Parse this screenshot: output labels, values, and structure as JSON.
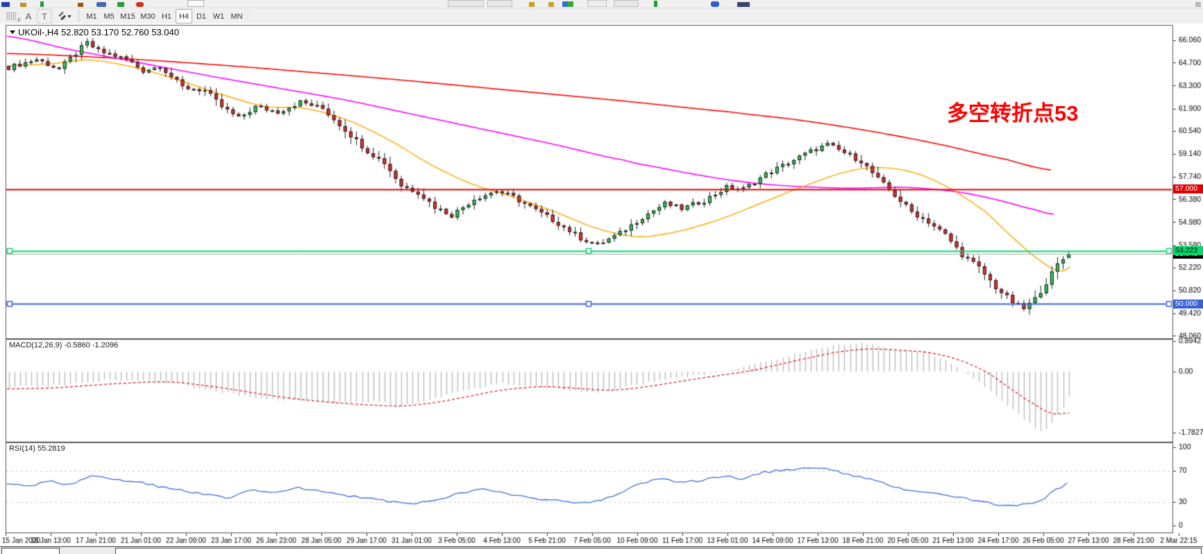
{
  "window": {
    "app": "MetaTrader chart window"
  },
  "toolbar": {
    "tools": {
      "grid_f": "F",
      "text_a": "A",
      "text_t": "T"
    },
    "timeframes": [
      {
        "label": "M1",
        "active": false
      },
      {
        "label": "M5",
        "active": false
      },
      {
        "label": "M15",
        "active": false
      },
      {
        "label": "M30",
        "active": false
      },
      {
        "label": "H1",
        "active": false
      },
      {
        "label": "H4",
        "active": true
      },
      {
        "label": "D1",
        "active": false
      },
      {
        "label": "W1",
        "active": false
      },
      {
        "label": "MN",
        "active": false
      }
    ]
  },
  "chart": {
    "title": "UKOil-,H4  52.820 53.170 52.760 53.040",
    "symbol": "UKOil-",
    "period": "H4",
    "ohlc": {
      "open": "52.820",
      "high": "53.170",
      "low": "52.760",
      "close": "53.040"
    },
    "annotation": {
      "text": "多空转折点53",
      "color": "#ff0000"
    },
    "badges": {
      "resistance": "57.000",
      "selected_line": "53.223",
      "current_price": "53.040",
      "support": "50.000"
    },
    "macd_label": "MACD(12,26,9) -0.5860 -1.2096",
    "rsi_label": "RSI(14) 55.2819"
  },
  "chart_data": {
    "type": "candlestick+macd+rsi",
    "title": "UKOil- H4 candlestick chart with MA(red/magenta/orange), horizontal levels, MACD and RSI",
    "main_panel": {
      "ylim": [
        47.9,
        66.99
      ],
      "y_ticks": [
        {
          "label": "66.060",
          "value": 66.06
        },
        {
          "label": "64.700",
          "value": 64.7
        },
        {
          "label": "63.300",
          "value": 63.3
        },
        {
          "label": "61.900",
          "value": 61.9
        },
        {
          "label": "60.540",
          "value": 60.54
        },
        {
          "label": "59.140",
          "value": 59.14
        },
        {
          "label": "57.740",
          "value": 57.74
        },
        {
          "label": "56.380",
          "value": 56.38
        },
        {
          "label": "54.980",
          "value": 54.98
        },
        {
          "label": "53.580",
          "value": 53.58
        },
        {
          "label": "52.220",
          "value": 52.22
        },
        {
          "label": "50.820",
          "value": 50.82
        },
        {
          "label": "49.420",
          "value": 49.42
        },
        {
          "label": "48.060",
          "value": 48.06
        }
      ],
      "h_lines": [
        {
          "name": "resistance",
          "value": 57.0,
          "color": "#e00000"
        },
        {
          "name": "selected_trend_level",
          "value": 53.223,
          "color": "#00d96e",
          "handles": true
        },
        {
          "name": "current_price",
          "value": 53.04,
          "color": "#aaaaaa"
        },
        {
          "name": "support",
          "value": 50.0,
          "color": "#3a62d8",
          "handles": true
        }
      ],
      "candles": {
        "count": 190,
        "x_start": 10,
        "x_step": 8.08,
        "body_width": 5,
        "up_color": "#2fc954",
        "down_color": "#e53030",
        "outline": "#1a1a1a",
        "close_keyframes": [
          [
            0,
            64.4
          ],
          [
            5,
            64.9
          ],
          [
            9,
            64.3
          ],
          [
            13,
            65.6
          ],
          [
            14,
            65.9
          ],
          [
            16,
            65.4
          ],
          [
            21,
            64.9
          ],
          [
            24,
            64.2
          ],
          [
            27,
            64.5
          ],
          [
            31,
            63.2
          ],
          [
            35,
            63.0
          ],
          [
            38,
            62.0
          ],
          [
            41,
            61.3
          ],
          [
            44,
            62.0
          ],
          [
            48,
            61.7
          ],
          [
            52,
            62.3
          ],
          [
            56,
            61.9
          ],
          [
            60,
            60.6
          ],
          [
            64,
            59.3
          ],
          [
            67,
            58.6
          ],
          [
            70,
            57.2
          ],
          [
            73,
            56.8
          ],
          [
            76,
            55.9
          ],
          [
            79,
            55.4
          ],
          [
            83,
            56.4
          ],
          [
            87,
            56.9
          ],
          [
            90,
            56.5
          ],
          [
            94,
            55.7
          ],
          [
            98,
            54.9
          ],
          [
            102,
            54.0
          ],
          [
            105,
            53.6
          ],
          [
            109,
            54.3
          ],
          [
            113,
            55.3
          ],
          [
            117,
            56.1
          ],
          [
            120,
            55.8
          ],
          [
            124,
            56.3
          ],
          [
            128,
            57.1
          ],
          [
            131,
            57.0
          ],
          [
            135,
            57.9
          ],
          [
            139,
            58.6
          ],
          [
            143,
            59.3
          ],
          [
            146,
            59.7
          ],
          [
            149,
            59.2
          ],
          [
            152,
            58.7
          ],
          [
            155,
            57.6
          ],
          [
            158,
            56.6
          ],
          [
            161,
            55.6
          ],
          [
            164,
            55.0
          ],
          [
            167,
            54.2
          ],
          [
            170,
            53.0
          ],
          [
            173,
            52.2
          ],
          [
            176,
            51.0
          ],
          [
            179,
            50.1
          ],
          [
            181,
            49.7
          ],
          [
            183,
            50.3
          ],
          [
            185,
            51.3
          ],
          [
            187,
            52.4
          ],
          [
            189,
            53.04
          ]
        ],
        "last_ohlc": [
          52.82,
          53.17,
          52.76,
          53.04
        ]
      },
      "moving_averages": [
        {
          "name": "ma_slow_red",
          "color": "#ff0000",
          "width": 1.6,
          "points": [
            [
              10,
              65.25
            ],
            [
              150,
              65.0
            ],
            [
              300,
              64.6
            ],
            [
              450,
              64.1
            ],
            [
              600,
              63.55
            ],
            [
              750,
              62.95
            ],
            [
              900,
              62.35
            ],
            [
              1050,
              61.7
            ],
            [
              1150,
              61.2
            ],
            [
              1250,
              60.55
            ],
            [
              1350,
              59.75
            ],
            [
              1450,
              58.8
            ],
            [
              1515,
              58.15
            ]
          ]
        },
        {
          "name": "ma_mid_magenta",
          "color": "#ff00ff",
          "width": 1.6,
          "points": [
            [
              10,
              66.3
            ],
            [
              100,
              65.5
            ],
            [
              200,
              64.7
            ],
            [
              300,
              63.9
            ],
            [
              400,
              63.15
            ],
            [
              500,
              62.4
            ],
            [
              600,
              61.5
            ],
            [
              700,
              60.6
            ],
            [
              800,
              59.7
            ],
            [
              900,
              58.75
            ],
            [
              950,
              58.3
            ],
            [
              1000,
              57.9
            ],
            [
              1050,
              57.55
            ],
            [
              1100,
              57.3
            ],
            [
              1150,
              57.15
            ],
            [
              1220,
              57.05
            ],
            [
              1300,
              57.1
            ],
            [
              1340,
              57.0
            ],
            [
              1390,
              56.75
            ],
            [
              1440,
              56.3
            ],
            [
              1490,
              55.75
            ],
            [
              1520,
              55.45
            ]
          ]
        },
        {
          "name": "ma_fast_orange",
          "color": "#ffa500",
          "width": 1.4,
          "points": [
            [
              10,
              64.5
            ],
            [
              80,
              64.65
            ],
            [
              130,
              64.85
            ],
            [
              200,
              64.35
            ],
            [
              260,
              63.6
            ],
            [
              320,
              62.75
            ],
            [
              380,
              62.05
            ],
            [
              440,
              61.9
            ],
            [
              500,
              61.2
            ],
            [
              560,
              60.0
            ],
            [
              620,
              58.5
            ],
            [
              680,
              57.3
            ],
            [
              740,
              56.5
            ],
            [
              800,
              55.6
            ],
            [
              860,
              54.6
            ],
            [
              920,
              54.1
            ],
            [
              980,
              54.45
            ],
            [
              1040,
              55.2
            ],
            [
              1100,
              56.2
            ],
            [
              1160,
              57.2
            ],
            [
              1220,
              58.05
            ],
            [
              1270,
              58.3
            ],
            [
              1320,
              57.95
            ],
            [
              1370,
              57.0
            ],
            [
              1420,
              55.6
            ],
            [
              1460,
              54.0
            ],
            [
              1500,
              52.6
            ],
            [
              1528,
              52.0
            ],
            [
              1545,
              52.3
            ]
          ]
        }
      ]
    },
    "macd_panel": {
      "params": "12,26,9",
      "values": [
        -0.586,
        -1.2096
      ],
      "ylim": [
        -2.046,
        0.952
      ],
      "y_ticks": [
        {
          "label": "0.8942",
          "value": 0.8942
        },
        {
          "label": "0.00",
          "value": 0.0
        },
        {
          "label": "-1.7827",
          "value": -1.7827
        }
      ],
      "hist_color": "#bcbcbc",
      "signal_color": "#e02020",
      "hist_keyframes": [
        [
          10,
          -0.45
        ],
        [
          80,
          -0.4
        ],
        [
          160,
          -0.24
        ],
        [
          240,
          -0.3
        ],
        [
          300,
          -0.55
        ],
        [
          360,
          -0.75
        ],
        [
          420,
          -0.85
        ],
        [
          480,
          -0.92
        ],
        [
          540,
          -0.88
        ],
        [
          575,
          -0.98
        ],
        [
          610,
          -0.85
        ],
        [
          660,
          -0.55
        ],
        [
          720,
          -0.35
        ],
        [
          780,
          -0.45
        ],
        [
          840,
          -0.62
        ],
        [
          880,
          -0.55
        ],
        [
          920,
          -0.35
        ],
        [
          960,
          -0.2
        ],
        [
          1000,
          -0.12
        ],
        [
          1040,
          -0.02
        ],
        [
          1080,
          0.18
        ],
        [
          1120,
          0.4
        ],
        [
          1160,
          0.6
        ],
        [
          1200,
          0.78
        ],
        [
          1240,
          0.85
        ],
        [
          1270,
          0.72
        ],
        [
          1300,
          0.62
        ],
        [
          1330,
          0.58
        ],
        [
          1360,
          0.3
        ],
        [
          1400,
          -0.2
        ],
        [
          1440,
          -0.85
        ],
        [
          1470,
          -1.35
        ],
        [
          1500,
          -1.78
        ],
        [
          1515,
          -1.45
        ],
        [
          1530,
          -1.0
        ],
        [
          1541,
          -0.59
        ]
      ],
      "signal_keyframes": [
        [
          10,
          -0.5
        ],
        [
          80,
          -0.47
        ],
        [
          160,
          -0.36
        ],
        [
          240,
          -0.3
        ],
        [
          300,
          -0.42
        ],
        [
          360,
          -0.6
        ],
        [
          420,
          -0.78
        ],
        [
          480,
          -0.9
        ],
        [
          540,
          -0.98
        ],
        [
          580,
          -1.0
        ],
        [
          620,
          -0.92
        ],
        [
          660,
          -0.78
        ],
        [
          720,
          -0.55
        ],
        [
          780,
          -0.44
        ],
        [
          840,
          -0.5
        ],
        [
          880,
          -0.54
        ],
        [
          920,
          -0.47
        ],
        [
          960,
          -0.35
        ],
        [
          1000,
          -0.22
        ],
        [
          1040,
          -0.1
        ],
        [
          1080,
          0.02
        ],
        [
          1120,
          0.2
        ],
        [
          1160,
          0.38
        ],
        [
          1200,
          0.55
        ],
        [
          1250,
          0.66
        ],
        [
          1300,
          0.62
        ],
        [
          1340,
          0.55
        ],
        [
          1380,
          0.35
        ],
        [
          1420,
          0.0
        ],
        [
          1460,
          -0.55
        ],
        [
          1490,
          -0.95
        ],
        [
          1515,
          -1.22
        ],
        [
          1541,
          -1.21
        ]
      ]
    },
    "rsi_panel": {
      "params": "14",
      "value": 55.2819,
      "ylim": [
        -8.85,
        106.2
      ],
      "y_ticks": [
        {
          "label": "100",
          "value": 100
        },
        {
          "label": "70",
          "value": 70
        },
        {
          "label": "30",
          "value": 30
        },
        {
          "label": "0",
          "value": 0
        }
      ],
      "levels": [
        70,
        30
      ],
      "line_color": "#3a6fd8",
      "keyframes": [
        [
          10,
          55
        ],
        [
          40,
          50
        ],
        [
          70,
          57
        ],
        [
          100,
          52
        ],
        [
          130,
          63
        ],
        [
          160,
          60
        ],
        [
          200,
          55
        ],
        [
          230,
          50
        ],
        [
          260,
          45
        ],
        [
          300,
          40
        ],
        [
          330,
          35
        ],
        [
          360,
          45
        ],
        [
          400,
          42
        ],
        [
          430,
          48
        ],
        [
          460,
          44
        ],
        [
          500,
          38
        ],
        [
          540,
          34
        ],
        [
          570,
          30
        ],
        [
          600,
          28
        ],
        [
          630,
          33
        ],
        [
          660,
          42
        ],
        [
          700,
          46
        ],
        [
          730,
          41
        ],
        [
          760,
          36
        ],
        [
          800,
          32
        ],
        [
          840,
          28
        ],
        [
          870,
          33
        ],
        [
          900,
          45
        ],
        [
          930,
          55
        ],
        [
          950,
          60
        ],
        [
          980,
          55
        ],
        [
          1010,
          58
        ],
        [
          1040,
          63
        ],
        [
          1070,
          60
        ],
        [
          1100,
          68
        ],
        [
          1130,
          71
        ],
        [
          1160,
          74
        ],
        [
          1190,
          72
        ],
        [
          1220,
          66
        ],
        [
          1250,
          60
        ],
        [
          1280,
          52
        ],
        [
          1310,
          45
        ],
        [
          1340,
          42
        ],
        [
          1370,
          38
        ],
        [
          1400,
          33
        ],
        [
          1430,
          28
        ],
        [
          1460,
          24
        ],
        [
          1475,
          30
        ],
        [
          1490,
          27
        ],
        [
          1505,
          35
        ],
        [
          1520,
          45
        ],
        [
          1541,
          55.28
        ]
      ]
    },
    "x_axis": {
      "x_start": 8,
      "x_step": 65,
      "labels": [
        "15 Jan 2020",
        "16 Jan 13:00",
        "17 Jan 21:00",
        "21 Jan 01:00",
        "22 Jan 09:00",
        "23 Jan 17:00",
        "26 Jan 23:00",
        "28 Jan 05:00",
        "29 Jan 17:00",
        "31 Jan 01:00",
        "3 Feb 05:00",
        "4 Feb 13:00",
        "5 Feb 21:00",
        "7 Feb 05:00",
        "10 Feb 09:00",
        "11 Feb 17:00",
        "13 Feb 01:00",
        "14 Feb 09:00",
        "17 Feb 13:00",
        "18 Feb 21:00",
        "20 Feb 05:00",
        "21 Feb 13:00",
        "24 Feb 17:00",
        "26 Feb 05:00",
        "27 Feb 13:00",
        "28 Feb 21:00",
        "2 Mar 22:15"
      ]
    }
  },
  "colors": {
    "accent_red": "#ff0000",
    "accent_green": "#00d96e",
    "accent_blue": "#3a62d8"
  }
}
